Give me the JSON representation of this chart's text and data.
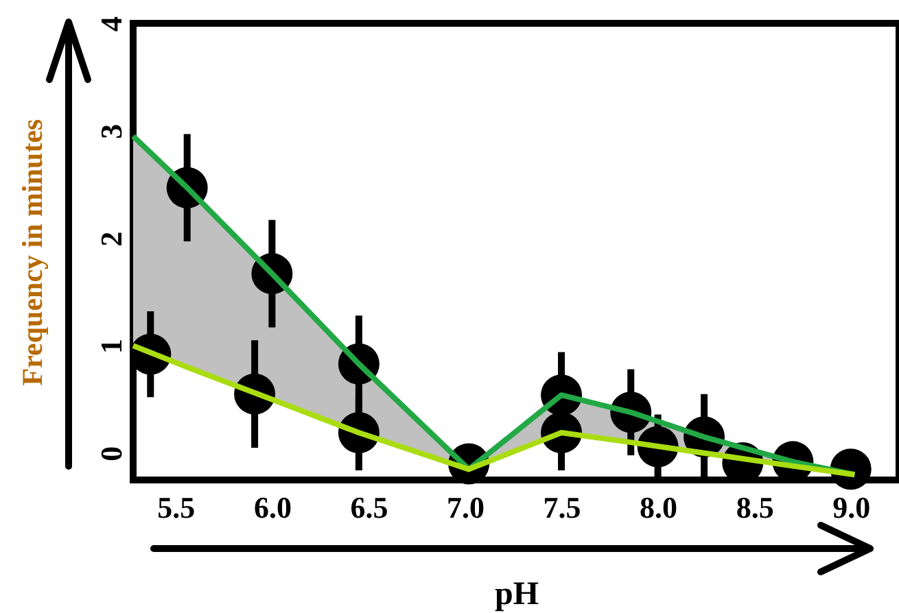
{
  "chart_data": {
    "type": "line",
    "xlabel": "pH",
    "ylabel": "Frequency in minutes",
    "xlim": [
      5.28,
      9.25
    ],
    "ylim": [
      -0.25,
      4
    ],
    "xticks": [
      5.5,
      {
        "value": 6,
        "label": "6.0"
      },
      6.5,
      {
        "value": 7,
        "label": "7.0"
      },
      7.5,
      {
        "value": 8,
        "label": "8.0"
      },
      8.5,
      {
        "value": 9,
        "label": "9.0"
      }
    ],
    "yticks": [
      0,
      1,
      2,
      3,
      4
    ],
    "grid": false,
    "marker": "circle",
    "series": [
      {
        "marker": "none",
        "color": "#22a845",
        "x": [
          5.28,
          5.56,
          6.0,
          6.45,
          7.02,
          7.5,
          7.86,
          8.24,
          8.7,
          9.02
        ],
        "values": [
          2.95,
          2.47,
          1.67,
          0.83,
          -0.15,
          0.54,
          0.38,
          0.15,
          -0.08,
          -0.2
        ],
        "lower": [
          1.0,
          0.8,
          0.5,
          0.19,
          -0.15,
          0.19,
          0.1,
          0.0,
          -0.12,
          -0.2
        ],
        "upper": [
          2.95,
          2.47,
          1.67,
          0.83,
          -0.15,
          0.54,
          0.38,
          0.15,
          -0.08,
          -0.2
        ]
      },
      {
        "marker": "none",
        "color": "#aadd11",
        "x": [
          5.28,
          5.56,
          6.0,
          6.45,
          7.02,
          7.5,
          7.86,
          8.24,
          8.7,
          9.02
        ],
        "values": [
          1.0,
          0.8,
          0.5,
          0.19,
          -0.15,
          0.19,
          0.1,
          0.0,
          -0.12,
          -0.2
        ]
      },
      {
        "type": "scatter",
        "color": "#000000",
        "x": [
          5.56,
          6.0,
          6.45,
          7.02,
          7.5,
          7.86,
          8.24,
          8.7,
          9.0
        ],
        "values": [
          2.47,
          1.67,
          0.83,
          -0.1,
          0.54,
          0.38,
          0.15,
          -0.08,
          -0.15
        ],
        "errors": [
          0.5,
          0.5,
          0.45,
          0.15,
          0.4,
          0.4,
          0.4,
          0.17,
          0.1
        ]
      },
      {
        "type": "scatter",
        "color": "#000000",
        "x": [
          5.37,
          5.91,
          6.45,
          7.5,
          8.0,
          8.44
        ],
        "values": [
          0.92,
          0.55,
          0.19,
          0.19,
          0.06,
          -0.09
        ],
        "errors": [
          0.4,
          0.5,
          0.35,
          0.35,
          0.3,
          0.15
        ]
      }
    ]
  }
}
